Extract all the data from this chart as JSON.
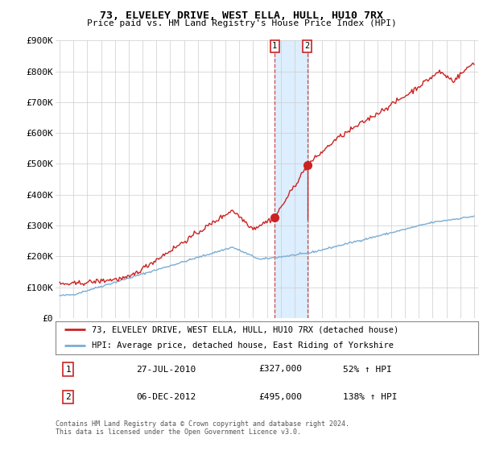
{
  "title": "73, ELVELEY DRIVE, WEST ELLA, HULL, HU10 7RX",
  "subtitle": "Price paid vs. HM Land Registry's House Price Index (HPI)",
  "ylim": [
    0,
    900000
  ],
  "yticks": [
    0,
    100000,
    200000,
    300000,
    400000,
    500000,
    600000,
    700000,
    800000,
    900000
  ],
  "ytick_labels": [
    "£0",
    "£100K",
    "£200K",
    "£300K",
    "£400K",
    "£500K",
    "£600K",
    "£700K",
    "£800K",
    "£900K"
  ],
  "x_start_year": 1995,
  "x_end_year": 2025,
  "hpi_color": "#7aadd4",
  "price_color": "#cc2222",
  "marker_color": "#cc2222",
  "shade_color": "#ddeeff",
  "sale1_date": 2010.57,
  "sale1_price": 327000,
  "sale1_label": "1",
  "sale2_date": 2012.92,
  "sale2_price": 495000,
  "sale2_label": "2",
  "legend_property": "73, ELVELEY DRIVE, WEST ELLA, HULL, HU10 7RX (detached house)",
  "legend_hpi": "HPI: Average price, detached house, East Riding of Yorkshire",
  "table_row1_num": "1",
  "table_row1_date": "27-JUL-2010",
  "table_row1_price": "£327,000",
  "table_row1_hpi": "52% ↑ HPI",
  "table_row2_num": "2",
  "table_row2_date": "06-DEC-2012",
  "table_row2_price": "£495,000",
  "table_row2_hpi": "138% ↑ HPI",
  "footnote": "Contains HM Land Registry data © Crown copyright and database right 2024.\nThis data is licensed under the Open Government Licence v3.0.",
  "background_color": "#ffffff",
  "grid_color": "#cccccc"
}
